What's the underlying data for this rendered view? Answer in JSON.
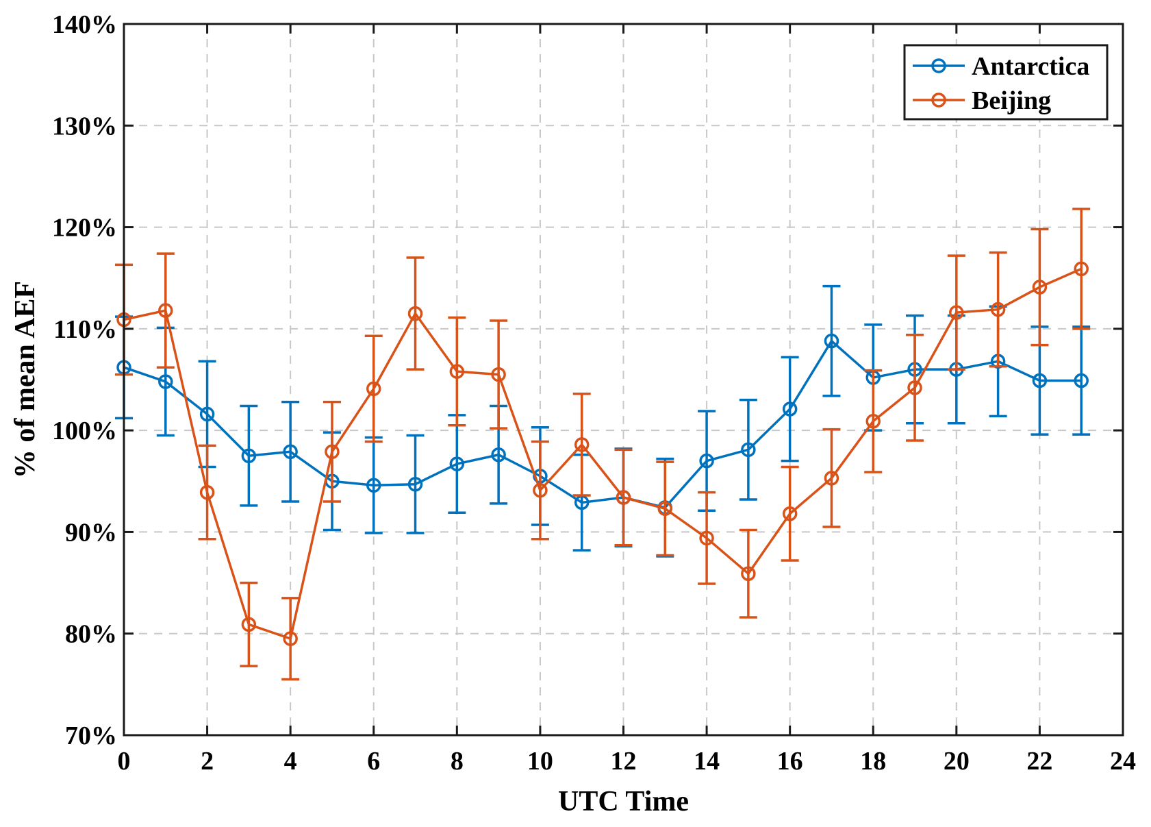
{
  "chart_data": {
    "type": "line",
    "title": "",
    "xlabel": "UTC Time",
    "ylabel": "% of mean AEF",
    "xlim": [
      0,
      24
    ],
    "ylim": [
      70,
      140
    ],
    "x_ticks": [
      0,
      2,
      4,
      6,
      8,
      10,
      12,
      14,
      16,
      18,
      20,
      22,
      24
    ],
    "x_tick_labels": [
      "0",
      "2",
      "4",
      "6",
      "8",
      "10",
      "12",
      "14",
      "16",
      "18",
      "20",
      "22",
      "24"
    ],
    "y_ticks": [
      70,
      80,
      90,
      100,
      110,
      120,
      130,
      140
    ],
    "y_tick_labels": [
      "70%",
      "80%",
      "90%",
      "100%",
      "110%",
      "120%",
      "130%",
      "140%"
    ],
    "grid": true,
    "legend_position": "top-right",
    "x": [
      0,
      1,
      2,
      3,
      4,
      5,
      6,
      7,
      8,
      9,
      10,
      11,
      12,
      13,
      14,
      15,
      16,
      17,
      18,
      19,
      20,
      21,
      22,
      23
    ],
    "series": [
      {
        "name": "Antarctica",
        "color": "#0072BD",
        "values": [
          106.2,
          104.8,
          101.6,
          97.5,
          97.9,
          95.0,
          94.6,
          94.7,
          96.7,
          97.6,
          95.5,
          92.9,
          93.4,
          92.4,
          97.0,
          98.1,
          102.1,
          108.8,
          105.2,
          106.0,
          106.0,
          106.8,
          104.9,
          104.9
        ],
        "errors": [
          5.0,
          5.3,
          5.2,
          4.9,
          4.9,
          4.8,
          4.7,
          4.8,
          4.8,
          4.8,
          4.8,
          4.7,
          4.8,
          4.8,
          4.9,
          4.9,
          5.1,
          5.4,
          5.2,
          5.3,
          5.3,
          5.4,
          5.3,
          5.3
        ]
      },
      {
        "name": "Beijing",
        "color": "#D95319",
        "values": [
          110.9,
          111.8,
          93.9,
          80.9,
          79.5,
          97.9,
          104.1,
          111.5,
          105.8,
          105.5,
          94.1,
          98.6,
          93.4,
          92.3,
          89.4,
          85.9,
          91.8,
          95.3,
          100.9,
          104.2,
          111.6,
          111.9,
          114.1,
          115.9
        ],
        "errors": [
          5.4,
          5.6,
          4.6,
          4.1,
          4.0,
          4.9,
          5.2,
          5.5,
          5.3,
          5.3,
          4.8,
          5.0,
          4.7,
          4.6,
          4.5,
          4.3,
          4.6,
          4.8,
          5.0,
          5.2,
          5.6,
          5.6,
          5.7,
          5.9
        ]
      }
    ]
  }
}
